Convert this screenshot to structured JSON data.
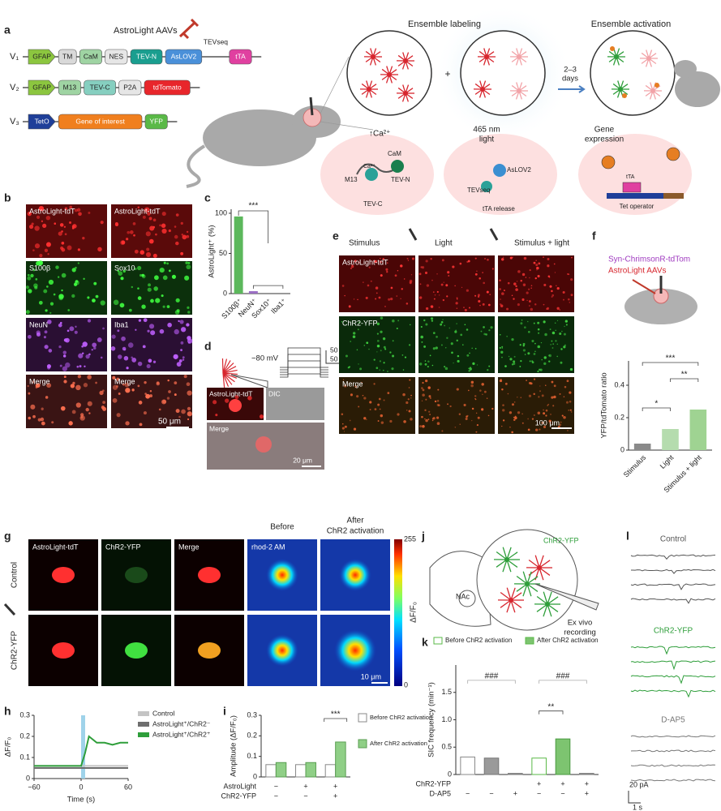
{
  "panel_labels": [
    "a",
    "b",
    "c",
    "d",
    "e",
    "f",
    "g",
    "h",
    "i",
    "j",
    "k",
    "l"
  ],
  "panel_a": {
    "title": "AstroLight AAVs",
    "vectors": [
      {
        "name": "V₁",
        "parts": [
          {
            "label": "GFAP",
            "color": "#8cc63f"
          },
          {
            "label": "TM",
            "color": "#d9d9d9"
          },
          {
            "label": "CaM",
            "color": "#9fd4a3"
          },
          {
            "label": "NES",
            "color": "#e6e6e6"
          },
          {
            "label": "TEV-N",
            "color": "#1a9e8f"
          },
          {
            "label": "AsLOV2",
            "color": "#4a90d9"
          },
          {
            "label": "tTA",
            "color": "#e040a0"
          }
        ]
      },
      {
        "name": "V₂",
        "parts": [
          {
            "label": "GFAP",
            "color": "#8cc63f"
          },
          {
            "label": "M13",
            "color": "#9fd4a3"
          },
          {
            "label": "TEV-C",
            "color": "#86cfc0"
          },
          {
            "label": "P2A",
            "color": "#e6e6e6"
          },
          {
            "label": "tdTomato",
            "color": "#e8262b"
          }
        ]
      },
      {
        "name": "V₃",
        "parts": [
          {
            "label": "TetO",
            "color": "#1f3f99"
          },
          {
            "label": "Gene of interest",
            "color": "#f07f1e"
          },
          {
            "label": "YFP",
            "color": "#5ab947"
          }
        ]
      }
    ],
    "tevseq": "TEVseq",
    "ensemble_labeling": "Ensemble labeling",
    "ensemble_activation": "Ensemble activation",
    "plus": "+",
    "days": [
      "2–3",
      "days"
    ],
    "calcium": "↑Ca²⁺",
    "light": [
      "465 nm",
      "light"
    ],
    "gene_expression": [
      "Gene",
      "expression"
    ],
    "mechanism": {
      "cam": "CaM",
      "m13": "M13",
      "tev_n": "TEV-N",
      "tev_c": "TEV-C",
      "ca": "Ca²⁺",
      "aslov2": "AsLOV2",
      "tevseq": "TEVseq",
      "tta_release": "tTA release",
      "tta": "tTA",
      "tet_operator": "Tet operator"
    }
  },
  "panel_b": {
    "labels": [
      "AstroLight-tdT",
      "AstroLight-tdT",
      "S100β",
      "Sox10",
      "NeuN",
      "Iba1",
      "Merge",
      "Merge"
    ],
    "scale": "50 μm"
  },
  "panel_d": {
    "hold": "−80 mV",
    "scale_v": "50 mV",
    "scale_t": "50 ms",
    "labels": [
      "AstroLight-tdT",
      "DIC",
      "Merge"
    ],
    "scale": "20 μm"
  },
  "panel_e": {
    "columns": [
      "Stimulus",
      "Light",
      "Stimulus + light"
    ],
    "rows": [
      "AstroLight-tdT",
      "ChR2-YFP",
      "Merge"
    ],
    "scale": "100 μm"
  },
  "panel_f": {
    "legend": [
      "Syn-ChrimsonR-tdTom",
      "AstroLight AAVs"
    ]
  },
  "panel_g": {
    "labels": [
      "AstroLight-tdT",
      "ChR2-YFP",
      "Merge",
      "rhod-2 AM"
    ],
    "columns": [
      "Before",
      "After",
      "ChR2 activation"
    ],
    "rows": [
      "Control",
      "ChR2-YFP"
    ],
    "colorbar_ticks": [
      255,
      0
    ],
    "colorbar_label": "ΔF/F₀",
    "scale": "10 μm"
  },
  "panel_j": {
    "region": "NAc",
    "label": "ChR2-YFP",
    "recording": [
      "Ex vivo",
      "recording"
    ]
  },
  "panel_l": {
    "rows": [
      "Control",
      "ChR2-YFP",
      "D-AP5"
    ],
    "scale_amp": "20 pA",
    "scale_time": "1 s"
  },
  "chart_data": [
    {
      "type": "bar",
      "y_label": "AstroLight⁺ (%)",
      "categories": [
        "S100β⁺",
        "NeuN⁺",
        "Sox10⁺",
        "Iba1⁺"
      ],
      "values": [
        96,
        3,
        1,
        1
      ],
      "colors": [
        "#5cb85c",
        "#9b6fc4",
        "#9a9a9a",
        "#9a9a9a"
      ],
      "ylim": [
        0,
        105
      ],
      "yticks": [
        0,
        50,
        100
      ],
      "annotations": [
        "***"
      ]
    },
    {
      "type": "bar",
      "y_label": "YFP/tdTomato ratio",
      "categories": [
        "Stimulus",
        "Light",
        "Stimulus + light"
      ],
      "values": [
        0.04,
        0.13,
        0.25
      ],
      "colors": [
        "#8a8a8a",
        "#b5dcae",
        "#9fd392"
      ],
      "ylim": [
        0,
        0.55
      ],
      "yticks": [
        0,
        0.2,
        0.4
      ],
      "annotations": [
        "*",
        "**",
        "***"
      ]
    },
    {
      "type": "line",
      "x_label": "Time (s)",
      "y_label": "ΔF/F₀",
      "x": [
        -60,
        -50,
        -40,
        -30,
        -20,
        -10,
        0,
        5,
        10,
        20,
        30,
        40,
        50,
        60
      ],
      "series": [
        {
          "name": "Control",
          "color": "#c4c4c4",
          "values": [
            0.06,
            0.06,
            0.06,
            0.06,
            0.06,
            0.06,
            0.06,
            0.06,
            0.06,
            0.06,
            0.06,
            0.06,
            0.06,
            0.06
          ]
        },
        {
          "name": "AstroLight⁺/ChR2⁻",
          "color": "#6e6e6e",
          "values": [
            0.05,
            0.05,
            0.05,
            0.05,
            0.05,
            0.05,
            0.05,
            0.05,
            0.05,
            0.05,
            0.05,
            0.05,
            0.05,
            0.05
          ]
        },
        {
          "name": "AstroLight⁺/ChR2⁺",
          "color": "#2e9e3a",
          "values": [
            0.06,
            0.06,
            0.06,
            0.06,
            0.06,
            0.06,
            0.06,
            0.12,
            0.2,
            0.17,
            0.17,
            0.16,
            0.17,
            0.17
          ]
        }
      ],
      "xlim": [
        -60,
        60
      ],
      "xticks": [
        {
          "value": -60,
          "label": "−60"
        },
        0,
        60
      ],
      "ylim": [
        0,
        0.3
      ],
      "yticks": [
        0,
        0.1,
        0.2,
        0.3
      ]
    },
    {
      "type": "bar",
      "y_label": "Amplitude (ΔF/F₀)",
      "categories": [
        null,
        null,
        null
      ],
      "series": [
        {
          "name": "Before ChR2 activation",
          "color": "#ffffff",
          "edge": "#888888",
          "values": [
            0.06,
            0.06,
            0.06
          ]
        },
        {
          "name": "After ChR2 activation",
          "color": "#8fcf86",
          "edge": "#5a9e52",
          "values": [
            0.07,
            0.07,
            0.17
          ]
        }
      ],
      "conditions": [
        {
          "name": "AstroLight",
          "labels": [
            "−",
            "+",
            "+"
          ]
        },
        {
          "name": "ChR2-YFP",
          "labels": [
            "−",
            "−",
            "+"
          ]
        }
      ],
      "ylim": [
        0,
        0.3
      ],
      "yticks": [
        0,
        0.1,
        0.2,
        0.3
      ],
      "annotations": [
        "***"
      ]
    },
    {
      "type": "bar",
      "y_label": "SIC frequency (min⁻¹)",
      "categories": [
        null,
        null,
        null,
        null,
        null,
        null
      ],
      "values": [
        0.32,
        0.3,
        0.02,
        0.3,
        0.65,
        0.02
      ],
      "colors": [
        "#ffffff",
        "#9a9a9a",
        "#9a9a9a",
        "#ffffff",
        "#7dc470",
        "#9a9a9a"
      ],
      "edgecolors": [
        "#888888",
        "#777777",
        "#777777",
        "#5ab947",
        "#4a9a40",
        "#777777"
      ],
      "legend": [
        "Before ChR2 activation",
        "After ChR2 activation"
      ],
      "conditions": [
        {
          "name": "ChR2-YFP",
          "labels": [
            null,
            null,
            null,
            "+",
            "+",
            "+"
          ]
        },
        {
          "name": "D-AP5",
          "labels": [
            "−",
            "−",
            "+",
            "−",
            "−",
            "+"
          ]
        }
      ],
      "ylim": [
        0,
        2
      ],
      "yticks": [
        0,
        0.5,
        {
          "value": 1,
          "label": "1.0"
        },
        1.5
      ],
      "annotations": [
        "###",
        "###",
        "**"
      ]
    }
  ]
}
